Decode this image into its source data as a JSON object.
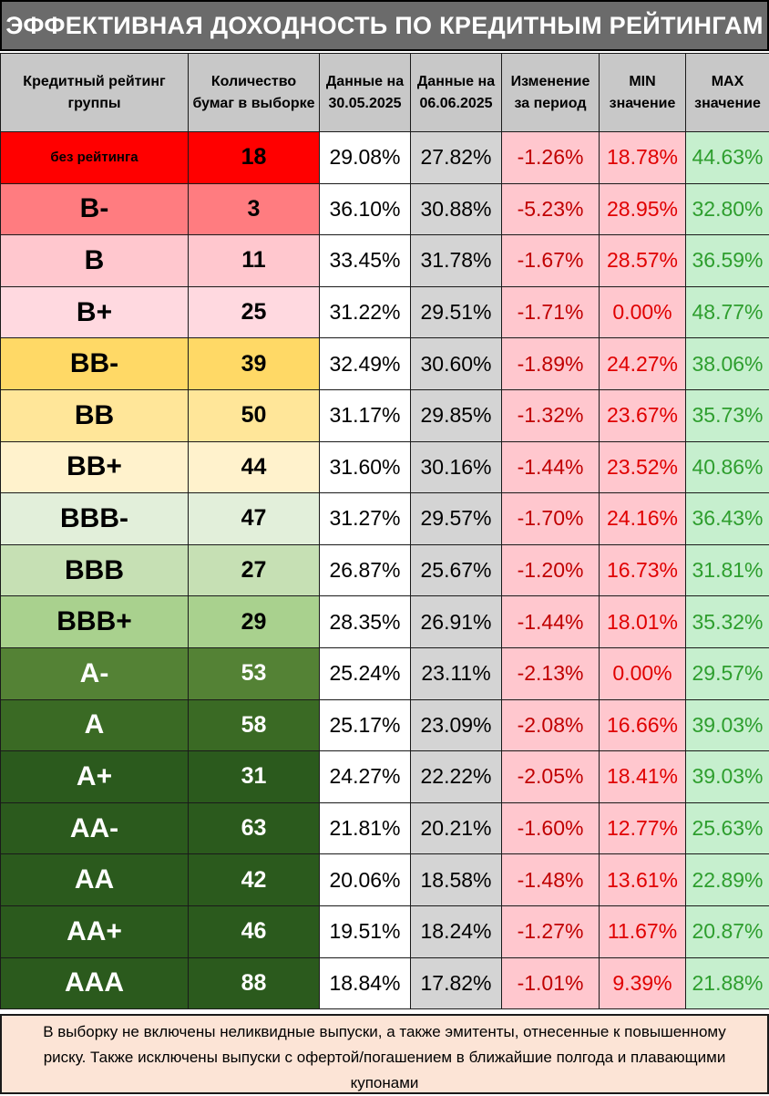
{
  "title": "ЭФФЕКТИВНАЯ ДОХОДНОСТЬ ПО КРЕДИТНЫМ РЕЙТИНГАМ",
  "headers": {
    "rating": "Кредитный рейтинг группы",
    "count": "Количество бумаг в выборке",
    "date1": "Данные на 30.05.2025",
    "date2": "Данные на 06.06.2025",
    "change": "Изменение за период",
    "min": "MIN значение",
    "max": "MAX значение"
  },
  "rows": [
    {
      "rating": "без рейтинга",
      "count": "18",
      "date1": "29.08%",
      "date2": "27.82%",
      "change": "-1.26%",
      "min": "18.78%",
      "max": "44.63%",
      "bg": "#ff0000",
      "fg": "#000000",
      "small": true
    },
    {
      "rating": "B-",
      "count": "3",
      "date1": "36.10%",
      "date2": "30.88%",
      "change": "-5.23%",
      "min": "28.95%",
      "max": "32.80%",
      "bg": "#ff7c80",
      "fg": "#000000"
    },
    {
      "rating": "B",
      "count": "11",
      "date1": "33.45%",
      "date2": "31.78%",
      "change": "-1.67%",
      "min": "28.57%",
      "max": "36.59%",
      "bg": "#ffc7ce",
      "fg": "#000000"
    },
    {
      "rating": "B+",
      "count": "25",
      "date1": "31.22%",
      "date2": "29.51%",
      "change": "-1.71%",
      "min": "0.00%",
      "max": "48.77%",
      "bg": "#ffd9e0",
      "fg": "#000000"
    },
    {
      "rating": "BB-",
      "count": "39",
      "date1": "32.49%",
      "date2": "30.60%",
      "change": "-1.89%",
      "min": "24.27%",
      "max": "38.06%",
      "bg": "#ffd966",
      "fg": "#000000"
    },
    {
      "rating": "BB",
      "count": "50",
      "date1": "31.17%",
      "date2": "29.85%",
      "change": "-1.32%",
      "min": "23.67%",
      "max": "35.73%",
      "bg": "#ffe699",
      "fg": "#000000"
    },
    {
      "rating": "BB+",
      "count": "44",
      "date1": "31.60%",
      "date2": "30.16%",
      "change": "-1.44%",
      "min": "23.52%",
      "max": "40.86%",
      "bg": "#fff2cc",
      "fg": "#000000"
    },
    {
      "rating": "BBB-",
      "count": "47",
      "date1": "31.27%",
      "date2": "29.57%",
      "change": "-1.70%",
      "min": "24.16%",
      "max": "36.43%",
      "bg": "#e2efda",
      "fg": "#000000"
    },
    {
      "rating": "BBB",
      "count": "27",
      "date1": "26.87%",
      "date2": "25.67%",
      "change": "-1.20%",
      "min": "16.73%",
      "max": "31.81%",
      "bg": "#c6e0b4",
      "fg": "#000000"
    },
    {
      "rating": "BBB+",
      "count": "29",
      "date1": "28.35%",
      "date2": "26.91%",
      "change": "-1.44%",
      "min": "18.01%",
      "max": "35.32%",
      "bg": "#a9d18e",
      "fg": "#000000"
    },
    {
      "rating": "A-",
      "count": "53",
      "date1": "25.24%",
      "date2": "23.11%",
      "change": "-2.13%",
      "min": "0.00%",
      "max": "29.57%",
      "bg": "#548235",
      "fg": "#ffffff"
    },
    {
      "rating": "A",
      "count": "58",
      "date1": "25.17%",
      "date2": "23.09%",
      "change": "-2.08%",
      "min": "16.66%",
      "max": "39.03%",
      "bg": "#3a6a24",
      "fg": "#ffffff"
    },
    {
      "rating": "A+",
      "count": "31",
      "date1": "24.27%",
      "date2": "22.22%",
      "change": "-2.05%",
      "min": "18.41%",
      "max": "39.03%",
      "bg": "#2b5a1d",
      "fg": "#ffffff"
    },
    {
      "rating": "AA-",
      "count": "63",
      "date1": "21.81%",
      "date2": "20.21%",
      "change": "-1.60%",
      "min": "12.77%",
      "max": "25.63%",
      "bg": "#2b5a1d",
      "fg": "#ffffff"
    },
    {
      "rating": "AA",
      "count": "42",
      "date1": "20.06%",
      "date2": "18.58%",
      "change": "-1.48%",
      "min": "13.61%",
      "max": "22.89%",
      "bg": "#2b5a1d",
      "fg": "#ffffff"
    },
    {
      "rating": "AA+",
      "count": "46",
      "date1": "19.51%",
      "date2": "18.24%",
      "change": "-1.27%",
      "min": "11.67%",
      "max": "20.87%",
      "bg": "#2b5a1d",
      "fg": "#ffffff"
    },
    {
      "rating": "AAA",
      "count": "88",
      "date1": "18.84%",
      "date2": "17.82%",
      "change": "-1.01%",
      "min": "9.39%",
      "max": "21.88%",
      "bg": "#2b5a1d",
      "fg": "#ffffff"
    }
  ],
  "note": "В выборку не включены неликвидные выпуски, а также эмитенты, отнесенные к повышенному риску. Также исключены выпуски с офертой/погашением в ближайшие полгода и плавающими купонами"
}
